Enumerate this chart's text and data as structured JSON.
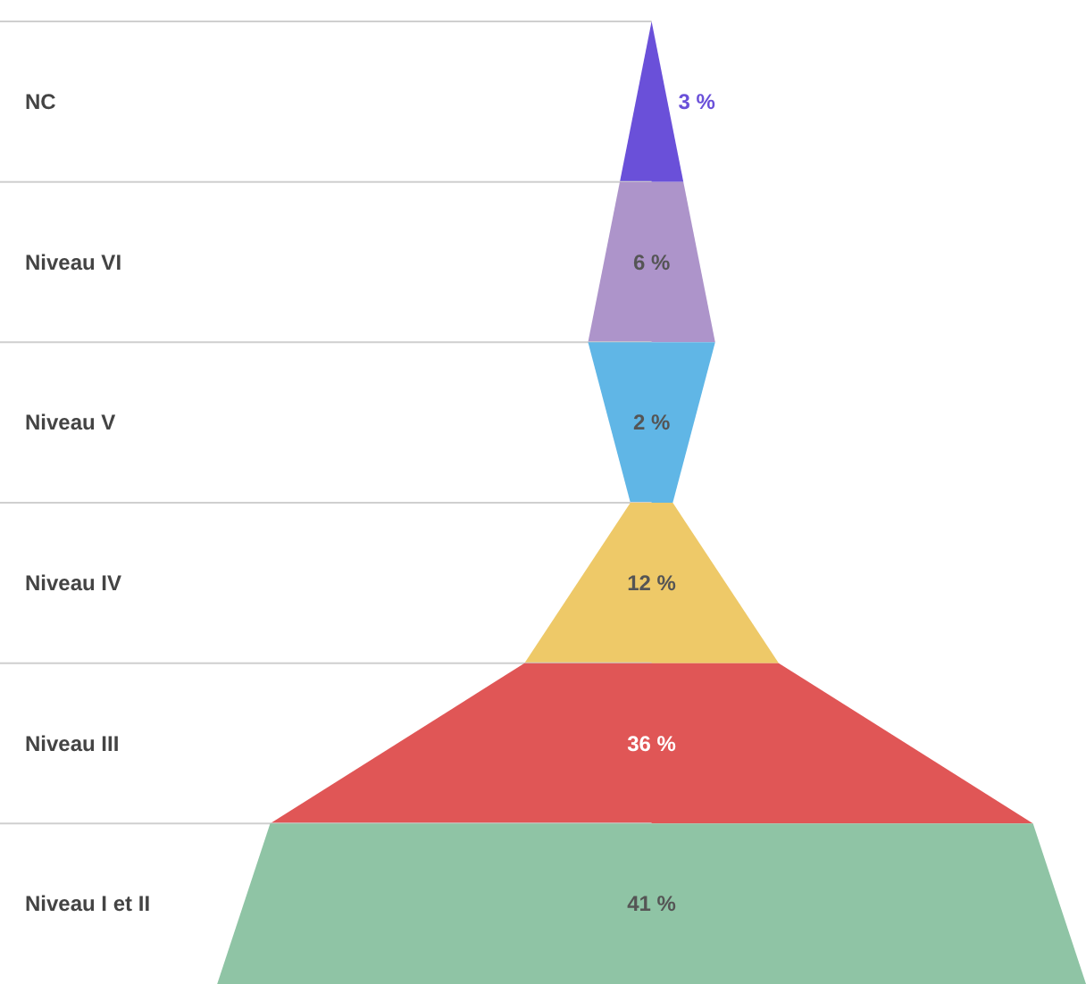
{
  "chart_data": {
    "type": "other",
    "categories": [
      "NC",
      "Niveau VI",
      "Niveau V",
      "Niveau IV",
      "Niveau III",
      "Niveau I et II"
    ],
    "values": [
      3,
      6,
      2,
      12,
      36,
      41
    ],
    "value_labels": [
      "3 %",
      "6 %",
      "2 %",
      "12 %",
      "36 %",
      "41 %"
    ],
    "colors": [
      "#6a50d9",
      "#ad94ca",
      "#60b6e6",
      "#eec968",
      "#e05656",
      "#8fc4a5"
    ]
  }
}
